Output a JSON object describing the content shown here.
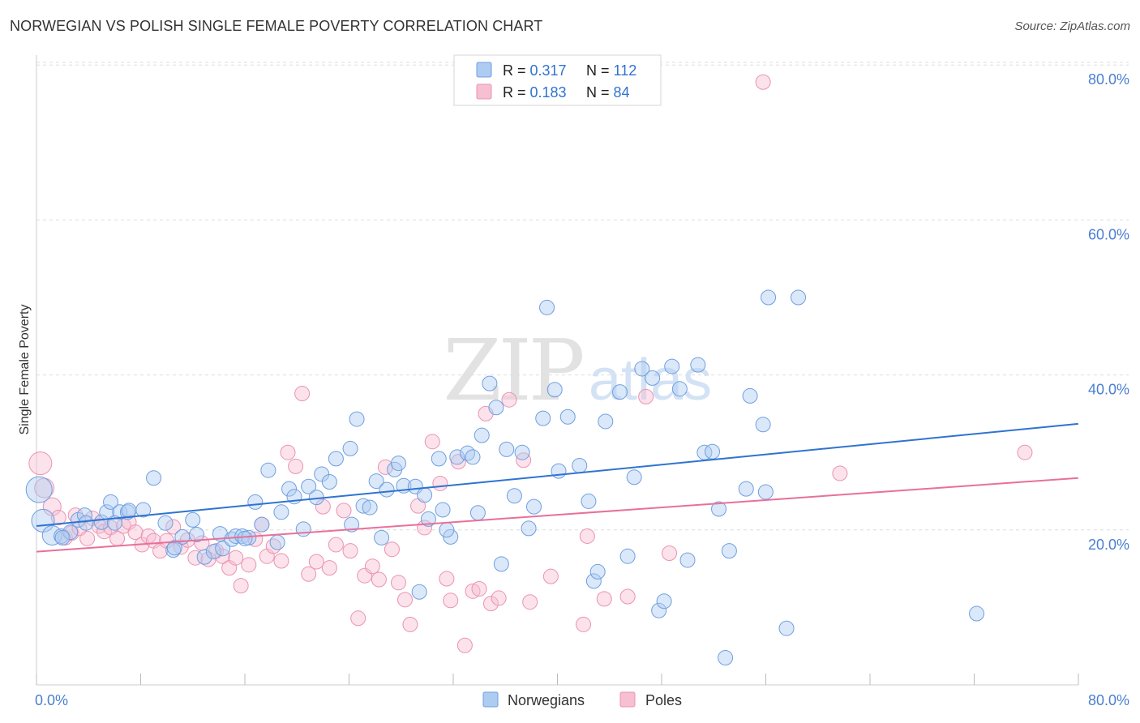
{
  "title": "NORWEGIAN VS POLISH SINGLE FEMALE POVERTY CORRELATION CHART",
  "source": "Source: ZipAtlas.com",
  "watermark": {
    "zip": "ZIP",
    "atlas": "atlas"
  },
  "colors": {
    "blue_fill": "#aecbf2",
    "blue_stroke": "#6f9fe0",
    "blue_line": "#2f73d0",
    "pink_fill": "#f6bfd2",
    "pink_stroke": "#eb93b2",
    "pink_line": "#e8709a",
    "axis_label": "#4a7fd0",
    "grid": "#dddddd"
  },
  "legend": {
    "rows": [
      {
        "r_label": "R = ",
        "r_value": "0.317",
        "n_label": "N = ",
        "n_value": "112"
      },
      {
        "r_label": "R = ",
        "r_value": "0.183",
        "n_label": "N = ",
        "n_value": "84"
      }
    ]
  },
  "bottom_legend": {
    "items": [
      "Norwegians",
      "Poles"
    ]
  },
  "chart_data": {
    "type": "scatter",
    "title": "NORWEGIAN VS POLISH SINGLE FEMALE POVERTY CORRELATION CHART",
    "xlabel": "",
    "ylabel": "Single Female Poverty",
    "xlim": [
      0,
      80
    ],
    "ylim": [
      0,
      82
    ],
    "x_tick_labels": [
      "0.0%",
      "80.0%"
    ],
    "y_ticks": [
      20,
      40,
      60,
      80
    ],
    "y_tick_labels": [
      "20.0%",
      "40.0%",
      "60.0%",
      "80.0%"
    ],
    "grid": true,
    "legend_position": "top-center",
    "series": [
      {
        "name": "Norwegians",
        "r": 0.317,
        "n": 112,
        "trend": {
          "x": [
            0,
            80
          ],
          "y": [
            20.5,
            33.7
          ]
        },
        "points": [
          [
            0.2,
            25.2
          ],
          [
            0.5,
            21.2
          ],
          [
            1.2,
            19.3
          ],
          [
            1.9,
            19.2
          ],
          [
            2.6,
            19.7
          ],
          [
            3.2,
            21.3
          ],
          [
            3.7,
            21.9
          ],
          [
            3.8,
            20.9
          ],
          [
            5.0,
            21.0
          ],
          [
            5.4,
            22.3
          ],
          [
            5.7,
            23.6
          ],
          [
            6.4,
            22.3
          ],
          [
            7.0,
            22.3
          ],
          [
            7.1,
            22.5
          ],
          [
            8.2,
            22.6
          ],
          [
            9.0,
            26.7
          ],
          [
            9.9,
            20.9
          ],
          [
            10.5,
            17.4
          ],
          [
            10.6,
            17.7
          ],
          [
            11.2,
            19.1
          ],
          [
            12.0,
            21.3
          ],
          [
            12.3,
            19.4
          ],
          [
            12.9,
            16.5
          ],
          [
            13.6,
            17.2
          ],
          [
            14.1,
            19.5
          ],
          [
            14.3,
            17.6
          ],
          [
            15.0,
            18.8
          ],
          [
            15.3,
            19.2
          ],
          [
            15.8,
            19.2
          ],
          [
            16.3,
            19.0
          ],
          [
            16.8,
            23.6
          ],
          [
            17.3,
            20.7
          ],
          [
            17.8,
            27.7
          ],
          [
            18.5,
            18.4
          ],
          [
            18.8,
            22.3
          ],
          [
            19.4,
            25.3
          ],
          [
            19.8,
            24.3
          ],
          [
            20.5,
            20.1
          ],
          [
            20.9,
            25.6
          ],
          [
            21.5,
            24.2
          ],
          [
            21.9,
            27.2
          ],
          [
            22.5,
            26.2
          ],
          [
            23.0,
            29.2
          ],
          [
            24.2,
            20.7
          ],
          [
            24.1,
            30.5
          ],
          [
            24.6,
            34.3
          ],
          [
            25.1,
            23.1
          ],
          [
            25.6,
            22.9
          ],
          [
            26.1,
            26.3
          ],
          [
            26.9,
            25.2
          ],
          [
            27.5,
            27.8
          ],
          [
            27.8,
            28.6
          ],
          [
            28.2,
            25.7
          ],
          [
            29.1,
            25.6
          ],
          [
            29.4,
            12.0
          ],
          [
            29.8,
            24.5
          ],
          [
            30.1,
            21.4
          ],
          [
            30.9,
            29.2
          ],
          [
            31.2,
            22.6
          ],
          [
            31.8,
            19.1
          ],
          [
            32.3,
            29.4
          ],
          [
            33.1,
            29.9
          ],
          [
            33.5,
            29.4
          ],
          [
            33.9,
            22.2
          ],
          [
            34.2,
            32.2
          ],
          [
            34.8,
            38.9
          ],
          [
            35.3,
            35.8
          ],
          [
            35.7,
            15.6
          ],
          [
            36.1,
            30.4
          ],
          [
            36.7,
            24.4
          ],
          [
            37.3,
            30.0
          ],
          [
            37.8,
            20.2
          ],
          [
            38.2,
            23.0
          ],
          [
            38.9,
            34.4
          ],
          [
            39.2,
            48.7
          ],
          [
            39.8,
            38.1
          ],
          [
            40.1,
            27.6
          ],
          [
            40.8,
            34.6
          ],
          [
            41.7,
            28.3
          ],
          [
            42.4,
            23.7
          ],
          [
            42.8,
            13.4
          ],
          [
            43.1,
            14.6
          ],
          [
            43.7,
            34.0
          ],
          [
            44.8,
            37.8
          ],
          [
            45.4,
            16.6
          ],
          [
            45.9,
            26.8
          ],
          [
            46.5,
            40.8
          ],
          [
            47.3,
            39.6
          ],
          [
            47.8,
            9.6
          ],
          [
            48.2,
            10.8
          ],
          [
            48.8,
            41.1
          ],
          [
            49.4,
            38.2
          ],
          [
            50.0,
            16.1
          ],
          [
            50.8,
            41.3
          ],
          [
            51.3,
            30.0
          ],
          [
            51.9,
            30.1
          ],
          [
            52.4,
            22.7
          ],
          [
            52.9,
            3.5
          ],
          [
            53.2,
            17.3
          ],
          [
            54.5,
            25.3
          ],
          [
            54.8,
            37.3
          ],
          [
            55.8,
            33.6
          ],
          [
            56.0,
            24.9
          ],
          [
            56.2,
            50.0
          ],
          [
            57.6,
            7.3
          ],
          [
            58.5,
            50.0
          ],
          [
            72.2,
            9.2
          ],
          [
            2.0,
            19.0
          ],
          [
            6.0,
            20.9
          ],
          [
            16.0,
            18.9
          ],
          [
            26.5,
            19.0
          ],
          [
            31.5,
            20.0
          ]
        ]
      },
      {
        "name": "Poles",
        "r": 0.183,
        "n": 84,
        "trend": {
          "x": [
            0,
            80
          ],
          "y": [
            17.2,
            26.7
          ]
        },
        "points": [
          [
            0.3,
            28.6
          ],
          [
            0.6,
            25.4
          ],
          [
            1.2,
            23.0
          ],
          [
            1.7,
            21.6
          ],
          [
            2.2,
            19.0
          ],
          [
            2.7,
            19.6
          ],
          [
            3.0,
            21.9
          ],
          [
            3.3,
            20.2
          ],
          [
            3.9,
            18.9
          ],
          [
            4.3,
            21.5
          ],
          [
            4.8,
            20.5
          ],
          [
            5.2,
            19.8
          ],
          [
            5.7,
            20.3
          ],
          [
            6.2,
            18.9
          ],
          [
            6.7,
            20.5
          ],
          [
            7.1,
            21.0
          ],
          [
            7.6,
            19.7
          ],
          [
            8.1,
            18.1
          ],
          [
            8.6,
            19.2
          ],
          [
            9.0,
            18.6
          ],
          [
            9.5,
            17.3
          ],
          [
            10.0,
            18.6
          ],
          [
            10.5,
            20.4
          ],
          [
            11.1,
            17.8
          ],
          [
            11.6,
            18.7
          ],
          [
            12.2,
            16.4
          ],
          [
            12.7,
            18.3
          ],
          [
            13.2,
            16.2
          ],
          [
            13.8,
            17.3
          ],
          [
            14.3,
            16.6
          ],
          [
            14.8,
            15.1
          ],
          [
            15.3,
            16.4
          ],
          [
            15.7,
            12.8
          ],
          [
            16.3,
            15.5
          ],
          [
            16.8,
            18.8
          ],
          [
            17.3,
            20.7
          ],
          [
            17.7,
            16.6
          ],
          [
            18.2,
            17.9
          ],
          [
            18.8,
            16.0
          ],
          [
            19.3,
            30.0
          ],
          [
            19.9,
            28.2
          ],
          [
            20.4,
            37.6
          ],
          [
            20.9,
            14.3
          ],
          [
            21.5,
            15.9
          ],
          [
            22.0,
            23.0
          ],
          [
            22.5,
            15.1
          ],
          [
            23.0,
            18.1
          ],
          [
            23.6,
            22.5
          ],
          [
            24.1,
            17.3
          ],
          [
            24.7,
            8.6
          ],
          [
            25.2,
            14.1
          ],
          [
            25.8,
            15.3
          ],
          [
            26.3,
            13.6
          ],
          [
            26.8,
            28.1
          ],
          [
            27.3,
            17.5
          ],
          [
            27.8,
            13.2
          ],
          [
            28.3,
            11.0
          ],
          [
            28.7,
            7.8
          ],
          [
            29.3,
            23.1
          ],
          [
            29.8,
            20.3
          ],
          [
            30.4,
            31.4
          ],
          [
            31.0,
            26.0
          ],
          [
            31.5,
            13.7
          ],
          [
            31.8,
            10.9
          ],
          [
            32.4,
            28.8
          ],
          [
            32.9,
            5.1
          ],
          [
            33.5,
            12.1
          ],
          [
            34.0,
            12.4
          ],
          [
            34.5,
            35.0
          ],
          [
            34.9,
            10.5
          ],
          [
            35.5,
            11.2
          ],
          [
            36.3,
            36.8
          ],
          [
            37.4,
            29.0
          ],
          [
            37.9,
            10.7
          ],
          [
            39.5,
            14.0
          ],
          [
            42.0,
            7.8
          ],
          [
            42.3,
            19.2
          ],
          [
            43.6,
            11.1
          ],
          [
            45.4,
            11.4
          ],
          [
            46.8,
            37.2
          ],
          [
            48.6,
            17.0
          ],
          [
            55.8,
            77.8
          ],
          [
            61.7,
            27.3
          ],
          [
            75.9,
            30.0
          ]
        ]
      }
    ]
  }
}
